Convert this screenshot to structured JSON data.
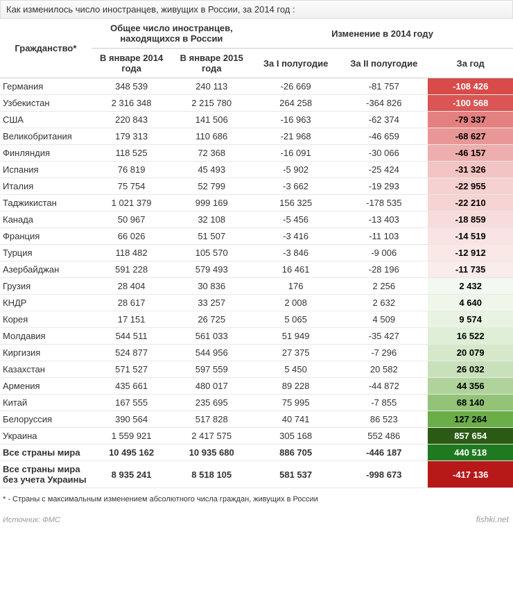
{
  "title": "Как изменилось число иностранцев, живущих в России, за 2014 год :",
  "header_group_total": "Общее число иностранцев, находящихся в России",
  "header_group_change": "Изменение в 2014 году",
  "col_country": "Гражданство*",
  "col_jan2014": "В январе 2014 года",
  "col_jan2015": "В январе 2015 года",
  "col_h1": "За I полугодие",
  "col_h2": "За II полугодие",
  "col_year": "За год",
  "footnote": "* - Страны с максимальным изменением абсолютного числа граждан, живущих в России",
  "source_label": "Источник: ФМС",
  "watermark": "fishki.net",
  "rows": [
    {
      "country": "Германия",
      "jan2014": "348 539",
      "jan2015": "240 113",
      "h1": "-26 669",
      "h2": "-81 757",
      "year": "-108 426",
      "year_bg": "#d84b49",
      "year_fg": "#ffffff"
    },
    {
      "country": "Узбекистан",
      "jan2014": "2 316 348",
      "jan2015": "2 215 780",
      "h1": "264 258",
      "h2": "-364 826",
      "year": "-100 568",
      "year_bg": "#da5553",
      "year_fg": "#ffffff"
    },
    {
      "country": "США",
      "jan2014": "220 843",
      "jan2015": "141 506",
      "h1": "-16 963",
      "h2": "-62 374",
      "year": "-79 337",
      "year_bg": "#e48180",
      "year_fg": "#000000"
    },
    {
      "country": "Великобритания",
      "jan2014": "179 313",
      "jan2015": "110 686",
      "h1": "-21 968",
      "h2": "-46 659",
      "year": "-68 627",
      "year_bg": "#e99796",
      "year_fg": "#000000"
    },
    {
      "country": "Финляндия",
      "jan2014": "118 525",
      "jan2015": "72 368",
      "h1": "-16 091",
      "h2": "-30 066",
      "year": "-46 157",
      "year_bg": "#edaead",
      "year_fg": "#000000"
    },
    {
      "country": "Испания",
      "jan2014": "76 819",
      "jan2015": "45 493",
      "h1": "-5 902",
      "h2": "-25 424",
      "year": "-31 326",
      "year_bg": "#f2c4c3",
      "year_fg": "#000000"
    },
    {
      "country": "Италия",
      "jan2014": "75 754",
      "jan2015": "52 799",
      "h1": "-3 662",
      "h2": "-19 293",
      "year": "-22 955",
      "year_bg": "#f5d2d1",
      "year_fg": "#000000"
    },
    {
      "country": "Таджикистан",
      "jan2014": "1 021 379",
      "jan2015": "999 169",
      "h1": "156 325",
      "h2": "-178 535",
      "year": "-22 210",
      "year_bg": "#f5d4d3",
      "year_fg": "#000000"
    },
    {
      "country": "Канада",
      "jan2014": "50 967",
      "jan2015": "32 108",
      "h1": "-5 456",
      "h2": "-13 403",
      "year": "-18 859",
      "year_bg": "#f7dcdb",
      "year_fg": "#000000"
    },
    {
      "country": "Франция",
      "jan2014": "66 026",
      "jan2015": "51 507",
      "h1": "-3 416",
      "h2": "-11 103",
      "year": "-14 519",
      "year_bg": "#f9e4e3",
      "year_fg": "#000000"
    },
    {
      "country": "Турция",
      "jan2014": "118 482",
      "jan2015": "105 570",
      "h1": "-3 846",
      "h2": "-9 006",
      "year": "-12 912",
      "year_bg": "#fae8e7",
      "year_fg": "#000000"
    },
    {
      "country": "Азербайджан",
      "jan2014": "591 228",
      "jan2015": "579 493",
      "h1": "16 461",
      "h2": "-28 196",
      "year": "-11 735",
      "year_bg": "#faeceb",
      "year_fg": "#000000"
    },
    {
      "country": "Грузия",
      "jan2014": "28 404",
      "jan2015": "30 836",
      "h1": "176",
      "h2": "2 256",
      "year": "2 432",
      "year_bg": "#f3f9f1",
      "year_fg": "#000000"
    },
    {
      "country": "КНДР",
      "jan2014": "28 617",
      "jan2015": "33 257",
      "h1": "2 008",
      "h2": "2 632",
      "year": "4 640",
      "year_bg": "#eff7eb",
      "year_fg": "#000000"
    },
    {
      "country": "Корея",
      "jan2014": "17 151",
      "jan2015": "26 725",
      "h1": "5 065",
      "h2": "4 509",
      "year": "9 574",
      "year_bg": "#e8f3e2",
      "year_fg": "#000000"
    },
    {
      "country": "Молдавия",
      "jan2014": "544 511",
      "jan2015": "561 033",
      "h1": "51 949",
      "h2": "-35 427",
      "year": "16 522",
      "year_bg": "#dfeed6",
      "year_fg": "#000000"
    },
    {
      "country": "Киргизия",
      "jan2014": "524 877",
      "jan2015": "544 956",
      "h1": "27 375",
      "h2": "-7 296",
      "year": "20 079",
      "year_bg": "#d5e8ca",
      "year_fg": "#000000"
    },
    {
      "country": "Казахстан",
      "jan2014": "571 527",
      "jan2015": "597 559",
      "h1": "5 450",
      "h2": "20 582",
      "year": "26 032",
      "year_bg": "#c9e1bb",
      "year_fg": "#000000"
    },
    {
      "country": "Армения",
      "jan2014": "435 661",
      "jan2015": "480 017",
      "h1": "89 228",
      "h2": "-44 872",
      "year": "44 356",
      "year_bg": "#afd39b",
      "year_fg": "#000000"
    },
    {
      "country": "Китай",
      "jan2014": "167 555",
      "jan2015": "235 695",
      "h1": "75 995",
      "h2": "-7 855",
      "year": "68 140",
      "year_bg": "#92c377",
      "year_fg": "#000000"
    },
    {
      "country": "Белоруссия",
      "jan2014": "390 564",
      "jan2015": "517 828",
      "h1": "40 741",
      "h2": "86 523",
      "year": "127 264",
      "year_bg": "#6bae48",
      "year_fg": "#000000"
    },
    {
      "country": "Украина",
      "jan2014": "1 559 921",
      "jan2015": "2 417 575",
      "h1": "305 168",
      "h2": "552 486",
      "year": "857 654",
      "year_bg": "#2a5a13",
      "year_fg": "#ffffff"
    }
  ],
  "totals": [
    {
      "country": "Все страны мира",
      "jan2014": "10 495 162",
      "jan2015": "10 935 680",
      "h1": "886 705",
      "h2": "-446 187",
      "year": "440 518",
      "year_bg": "#1f7a1f",
      "year_fg": "#ffffff"
    },
    {
      "country": "Все страны мира без учета Украины",
      "jan2014": "8 935 241",
      "jan2015": "8 518 105",
      "h1": "581 537",
      "h2": "-998 673",
      "year": "-417 136",
      "year_bg": "#b61918",
      "year_fg": "#ffffff"
    }
  ]
}
